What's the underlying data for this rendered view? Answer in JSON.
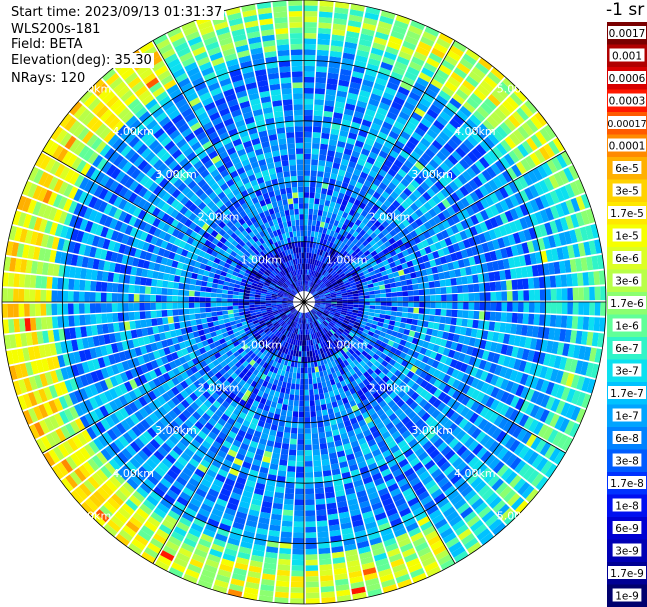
{
  "info": {
    "start_time": "Start time: 2023/09/13 01:31:37",
    "instrument": "WLS200s-181",
    "field": "Field: BETA",
    "elevation": "Elevation(deg): 35.30",
    "nrays": "NRays: 120"
  },
  "colorbar": {
    "title": "-1 sr",
    "labels": [
      "0.0017",
      "0.001",
      "0.0006",
      "0.0003",
      "0.00017",
      "0.0001",
      "6e-5",
      "3e-5",
      "1.7e-5",
      "1e-5",
      "6e-6",
      "3e-6",
      "1.7e-6",
      "1e-6",
      "6e-7",
      "3e-7",
      "1.7e-7",
      "1e-7",
      "6e-8",
      "3e-8",
      "1.7e-8",
      "1e-8",
      "6e-9",
      "3e-9",
      "1.7e-9",
      "1e-9"
    ],
    "colors": [
      "#7a0000",
      "#b00000",
      "#d80000",
      "#ff1800",
      "#ff5a00",
      "#ff8a00",
      "#ffb000",
      "#ffd200",
      "#ffe800",
      "#f6ff00",
      "#dcff24",
      "#b8ff48",
      "#8cff70",
      "#60ff98",
      "#30f4c8",
      "#0ce0f0",
      "#00c2ff",
      "#00a4ff",
      "#0082ff",
      "#005cff",
      "#0032ff",
      "#0010f0",
      "#0000d2",
      "#0000b4",
      "#000094",
      "#00006e"
    ]
  },
  "chart_data": {
    "type": "heatmap",
    "projection": "polar (PPI scan)",
    "field": "BETA",
    "nrays": 120,
    "range_rings_km": [
      1.0,
      2.0,
      3.0,
      4.0,
      5.0
    ],
    "ring_labels": [
      "1.00km",
      "2.00km",
      "3.00km",
      "4.00km",
      "5.00km"
    ],
    "max_range_km": 5.0,
    "spoke_interval_deg": 30,
    "value_scale": "log",
    "value_range": [
      1e-09,
      0.0017
    ],
    "typical_values": {
      "inner_0_to_1km": "1e-8",
      "mid_1_to_4km": "6e-8 to 1e-7",
      "outer_ring_4_to_5km": "1e-6 to 1e-5",
      "outer_edge_hotspots": "3e-5 to 6e-5"
    },
    "grid": true
  }
}
